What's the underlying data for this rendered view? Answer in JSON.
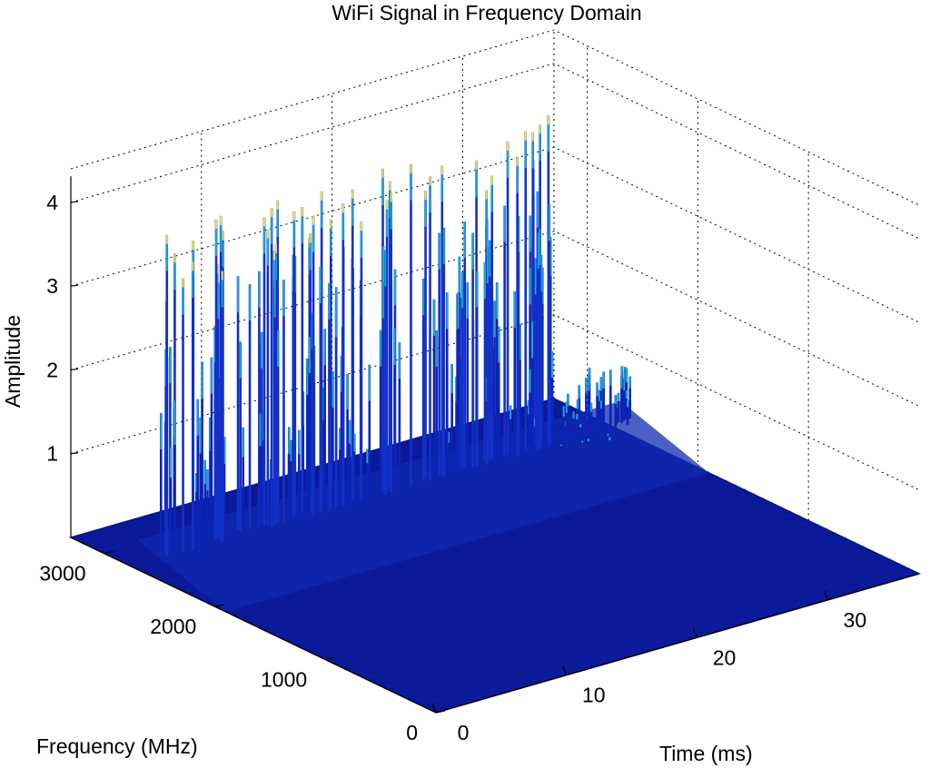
{
  "chart_data": {
    "type": "surface3d",
    "title": "WiFi Signal in Frequency Domain",
    "xlabel": "Time (ms)",
    "ylabel": "Frequency (MHz)",
    "zlabel": "Amplitude",
    "x_ticks": [
      "0",
      "10",
      "20",
      "30"
    ],
    "y_ticks": [
      "0",
      "1000",
      "2000",
      "3000"
    ],
    "z_ticks": [
      "1",
      "2",
      "3",
      "4"
    ],
    "xlim": [
      0,
      37
    ],
    "ylim": [
      0,
      3300
    ],
    "zlim": [
      0,
      4.4
    ],
    "grid": true,
    "colormap": "jet",
    "colors": {
      "surface": "#0a1a9a",
      "surface_dark": "#08137a",
      "spike_low": "#0b24b5",
      "spike_mid": "#1fa3d6",
      "spike_high": "#5fe8e8",
      "spike_top": "#f2e34a"
    },
    "signal_band": {
      "time_range": [
        0,
        37
      ],
      "frequency_range": [
        2400,
        2500
      ],
      "peak_amplitude_max": 4.2
    }
  }
}
